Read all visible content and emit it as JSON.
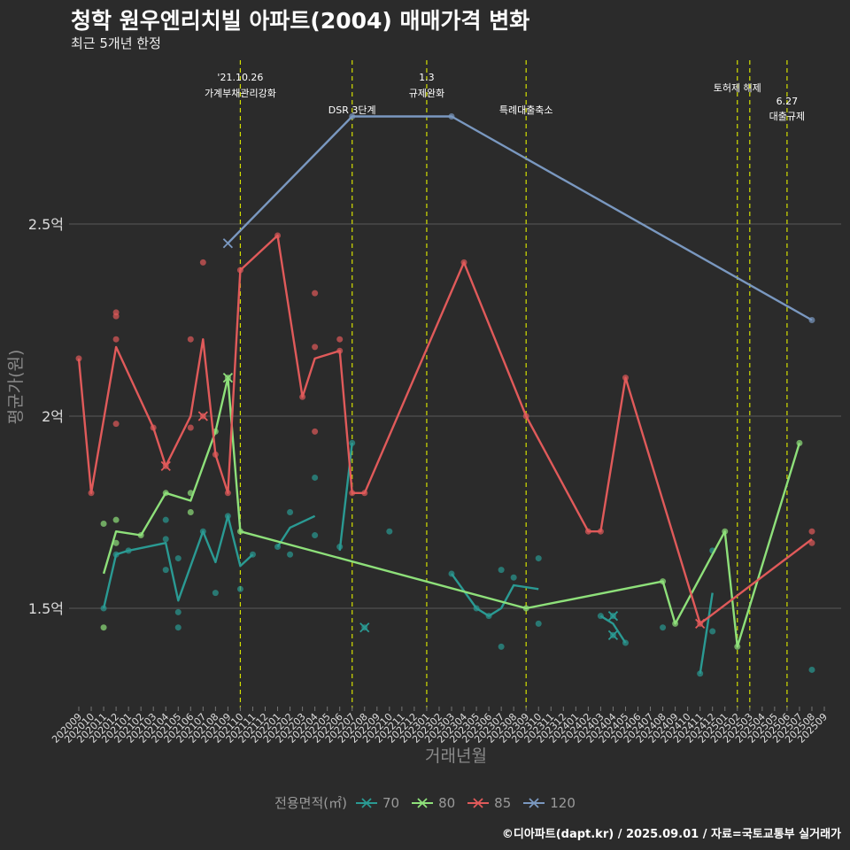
{
  "title": "청학 원우엔리치빌 아파트(2004) 매매가격 변화",
  "subtitle": "최근 5개년 한정",
  "caption": "©디아파트(dapt.kr) / 2025.09.01 / 자료=국토교통부 실거래가",
  "colors": {
    "background": "#2b2b2b",
    "grid": "#5a5a5a",
    "axis_text": "#dddddd",
    "axis_title": "#8a8a8a",
    "event_line": "#d4e000",
    "s70": "#2a9a93",
    "s80": "#8ee07a",
    "s85": "#e05a5a",
    "s120": "#7a98c0"
  },
  "chart_data": {
    "type": "line",
    "title": "청학 원우엔리치빌 아파트(2004) 매매가격 변화",
    "subtitle": "최근 5개년 한정",
    "xlabel": "거래년월",
    "ylabel": "평균가(원)",
    "legend_title": "전용면적(㎡)",
    "legend_position": "bottom",
    "grid": true,
    "ylim": [
      1.25,
      2.95
    ],
    "y_ticks": [
      {
        "value": 1.5,
        "label": "1.5억"
      },
      {
        "value": 2.0,
        "label": "2억"
      },
      {
        "value": 2.5,
        "label": "2.5억"
      }
    ],
    "x_categories": [
      "202009",
      "202010",
      "202011",
      "202012",
      "202101",
      "202102",
      "202103",
      "202104",
      "202105",
      "202106",
      "202107",
      "202108",
      "202109",
      "202110",
      "202111",
      "202112",
      "202201",
      "202202",
      "202203",
      "202204",
      "202205",
      "202206",
      "202207",
      "202208",
      "202209",
      "202210",
      "202211",
      "202212",
      "202301",
      "202302",
      "202303",
      "202304",
      "202305",
      "202306",
      "202307",
      "202308",
      "202309",
      "202310",
      "202311",
      "202312",
      "202401",
      "202402",
      "202403",
      "202404",
      "202405",
      "202406",
      "202407",
      "202408",
      "202409",
      "202410",
      "202411",
      "202412",
      "202501",
      "202502",
      "202503",
      "202504",
      "202505",
      "202506",
      "202507",
      "202508",
      "202509"
    ],
    "events": [
      {
        "x": "202110",
        "label": "'21.10.26\n가계부채관리강화"
      },
      {
        "x": "202207",
        "label": "DSR 3단계"
      },
      {
        "x": "202301",
        "label": "1.3\n규제완화"
      },
      {
        "x": "202309",
        "label": "특례대출축소"
      },
      {
        "x": "202502",
        "label": "토허제 해제"
      },
      {
        "x": "202503",
        "label": ""
      },
      {
        "x": "202506",
        "label": "6.27\n대출규제"
      }
    ],
    "series": [
      {
        "name": "70",
        "color": "#2a9a93",
        "line": [
          [
            "202011",
            1.5
          ],
          [
            "202012",
            1.64
          ],
          [
            "202101",
            1.65
          ],
          [
            "202104",
            1.67
          ],
          [
            "202105",
            1.52
          ],
          [
            "202107",
            1.7
          ],
          [
            "202108",
            1.62
          ],
          [
            "202109",
            1.74
          ],
          [
            "202110",
            1.61
          ],
          [
            "202111",
            1.64
          ],
          [
            "null",
            null
          ],
          [
            "202201",
            1.66
          ],
          [
            "202202",
            1.71
          ],
          [
            "202204",
            1.74
          ],
          [
            "null",
            null
          ],
          [
            "202206",
            1.65
          ],
          [
            "202207",
            1.93
          ],
          [
            "null",
            null
          ],
          [
            "202303",
            1.59
          ],
          [
            "202305",
            1.5
          ],
          [
            "202306",
            1.48
          ],
          [
            "202307",
            1.5
          ],
          [
            "202308",
            1.56
          ],
          [
            "202310",
            1.55
          ],
          [
            "null",
            null
          ],
          [
            "202403",
            1.48
          ],
          [
            "202404",
            1.46
          ],
          [
            "202405",
            1.41
          ],
          [
            "null",
            null
          ],
          [
            "202411",
            1.33
          ],
          [
            "202412",
            1.54
          ]
        ],
        "points": [
          [
            "202011",
            1.5
          ],
          [
            "202012",
            1.64
          ],
          [
            "202101",
            1.65
          ],
          [
            "202104",
            1.73
          ],
          [
            "202104",
            1.68
          ],
          [
            "202104",
            1.6
          ],
          [
            "202105",
            1.63
          ],
          [
            "202105",
            1.49
          ],
          [
            "202105",
            1.45
          ],
          [
            "202107",
            1.7
          ],
          [
            "202108",
            1.54
          ],
          [
            "202109",
            1.74
          ],
          [
            "202110",
            1.55
          ],
          [
            "202111",
            1.64
          ],
          [
            "202201",
            1.66
          ],
          [
            "202202",
            1.75
          ],
          [
            "202202",
            1.64
          ],
          [
            "202204",
            1.84
          ],
          [
            "202204",
            1.69
          ],
          [
            "202206",
            1.66
          ],
          [
            "202207",
            1.93
          ],
          [
            "202208",
            1.45
          ],
          [
            "202210",
            1.7
          ],
          [
            "202303",
            1.59
          ],
          [
            "202305",
            1.5
          ],
          [
            "202306",
            1.48
          ],
          [
            "202307",
            1.6
          ],
          [
            "202307",
            1.4
          ],
          [
            "202308",
            1.58
          ],
          [
            "202310",
            1.63
          ],
          [
            "202310",
            1.46
          ],
          [
            "202403",
            1.48
          ],
          [
            "202404",
            1.48
          ],
          [
            "202404",
            1.43
          ],
          [
            "202405",
            1.41
          ],
          [
            "202408",
            1.45
          ],
          [
            "202411",
            1.33
          ],
          [
            "202412",
            1.65
          ],
          [
            "202412",
            1.44
          ],
          [
            "202508",
            1.34
          ]
        ],
        "crosses": [
          [
            "202208",
            1.45
          ],
          [
            "202404",
            1.48
          ],
          [
            "202404",
            1.43
          ]
        ]
      },
      {
        "name": "80",
        "color": "#8ee07a",
        "line": [
          [
            "202011",
            1.59
          ],
          [
            "202012",
            1.7
          ],
          [
            "202102",
            1.69
          ],
          [
            "202104",
            1.8
          ],
          [
            "202106",
            1.78
          ],
          [
            "202108",
            1.96
          ],
          [
            "202109",
            2.1
          ],
          [
            "202110",
            1.7
          ],
          [
            "202309",
            1.5
          ],
          [
            "202408",
            1.57
          ],
          [
            "202409",
            1.46
          ],
          [
            "202501",
            1.7
          ],
          [
            "202502",
            1.4
          ],
          [
            "202507",
            1.93
          ]
        ],
        "points": [
          [
            "202011",
            1.72
          ],
          [
            "202011",
            1.45
          ],
          [
            "202012",
            1.73
          ],
          [
            "202012",
            1.67
          ],
          [
            "202102",
            1.69
          ],
          [
            "202104",
            1.8
          ],
          [
            "202106",
            1.8
          ],
          [
            "202106",
            1.75
          ],
          [
            "202108",
            1.96
          ],
          [
            "202109",
            2.1
          ],
          [
            "202110",
            1.7
          ],
          [
            "202309",
            1.5
          ],
          [
            "202408",
            1.57
          ],
          [
            "202409",
            1.46
          ],
          [
            "202501",
            1.7
          ],
          [
            "202502",
            1.4
          ],
          [
            "202507",
            1.93
          ]
        ],
        "crosses": [
          [
            "202109",
            2.1
          ]
        ]
      },
      {
        "name": "85",
        "color": "#e05a5a",
        "line": [
          [
            "202009",
            2.15
          ],
          [
            "202010",
            1.8
          ],
          [
            "202012",
            2.18
          ],
          [
            "202103",
            1.97
          ],
          [
            "202104",
            1.87
          ],
          [
            "202106",
            2.0
          ],
          [
            "202107",
            2.2
          ],
          [
            "202108",
            1.9
          ],
          [
            "202109",
            1.8
          ],
          [
            "202110",
            2.38
          ],
          [
            "202201",
            2.47
          ],
          [
            "202203",
            2.05
          ],
          [
            "202204",
            2.15
          ],
          [
            "202206",
            2.17
          ],
          [
            "202207",
            1.8
          ],
          [
            "202208",
            1.8
          ],
          [
            "202304",
            2.4
          ],
          [
            "202309",
            2.0
          ],
          [
            "202402",
            1.7
          ],
          [
            "202403",
            1.7
          ],
          [
            "202405",
            2.1
          ],
          [
            "202411",
            1.46
          ],
          [
            "202508",
            1.68
          ]
        ],
        "points": [
          [
            "202009",
            2.15
          ],
          [
            "202010",
            1.8
          ],
          [
            "202012",
            2.27
          ],
          [
            "202012",
            2.26
          ],
          [
            "202012",
            2.2
          ],
          [
            "202012",
            1.98
          ],
          [
            "202103",
            1.97
          ],
          [
            "202104",
            1.87
          ],
          [
            "202106",
            2.2
          ],
          [
            "202106",
            1.97
          ],
          [
            "202107",
            2.4
          ],
          [
            "202107",
            2.0
          ],
          [
            "202108",
            1.9
          ],
          [
            "202109",
            1.8
          ],
          [
            "202110",
            2.38
          ],
          [
            "202201",
            2.47
          ],
          [
            "202203",
            2.05
          ],
          [
            "202204",
            2.32
          ],
          [
            "202204",
            2.18
          ],
          [
            "202204",
            1.96
          ],
          [
            "202206",
            2.2
          ],
          [
            "202206",
            2.17
          ],
          [
            "202207",
            1.8
          ],
          [
            "202208",
            1.8
          ],
          [
            "202304",
            2.4
          ],
          [
            "202309",
            2.0
          ],
          [
            "202402",
            1.7
          ],
          [
            "202403",
            1.7
          ],
          [
            "202405",
            2.1
          ],
          [
            "202411",
            1.46
          ],
          [
            "202508",
            1.7
          ],
          [
            "202508",
            1.67
          ]
        ],
        "crosses": [
          [
            "202104",
            1.87
          ],
          [
            "202107",
            2.0
          ],
          [
            "202411",
            1.46
          ]
        ]
      },
      {
        "name": "120",
        "color": "#7a98c0",
        "line": [
          [
            "202109",
            2.45
          ],
          [
            "202207",
            2.78
          ],
          [
            "202303",
            2.78
          ],
          [
            "202508",
            2.25
          ]
        ],
        "points": [
          [
            "202207",
            2.78
          ],
          [
            "202303",
            2.78
          ],
          [
            "202508",
            2.25
          ]
        ],
        "crosses": [
          [
            "202109",
            2.45
          ]
        ]
      }
    ]
  }
}
